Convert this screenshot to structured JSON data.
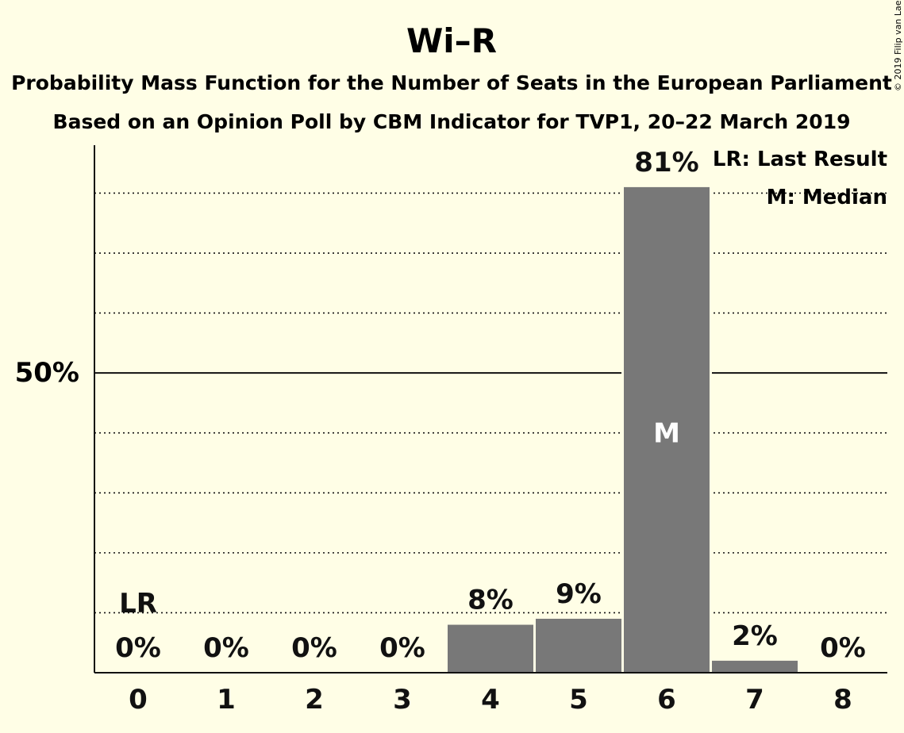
{
  "chart_data": {
    "type": "bar",
    "title": "Wi–R",
    "subtitle_lines": [
      "Probability Mass Function for the Number of Seats in the European Parliament",
      "Based on an Opinion Poll by CBM Indicator for TVP1, 20–22 March 2019"
    ],
    "copyright": "© 2019 Filip van Laenen",
    "categories": [
      "0",
      "1",
      "2",
      "3",
      "4",
      "5",
      "6",
      "7",
      "8"
    ],
    "values": [
      0,
      0,
      0,
      0,
      8,
      9,
      81,
      2,
      0
    ],
    "value_labels": [
      "0%",
      "0%",
      "0%",
      "0%",
      "8%",
      "9%",
      "81%",
      "2%",
      "0%"
    ],
    "ylim": [
      0,
      88
    ],
    "y_tick": {
      "value": 50,
      "label": "50%"
    },
    "gridlines": [
      10,
      20,
      30,
      40,
      60,
      70,
      80
    ],
    "median_index": 6,
    "median_mark": "M",
    "last_result_index": 0,
    "last_result_mark": "LR",
    "legend": [
      "LR: Last Result",
      "M: Median"
    ],
    "legend_position": "top-right",
    "colors": {
      "background": "#FFFEE6",
      "bar": "#787878",
      "text": "#111111"
    }
  }
}
